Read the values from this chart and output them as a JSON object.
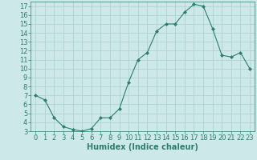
{
  "x": [
    0,
    1,
    2,
    3,
    4,
    5,
    6,
    7,
    8,
    9,
    10,
    11,
    12,
    13,
    14,
    15,
    16,
    17,
    18,
    19,
    20,
    21,
    22,
    23
  ],
  "y": [
    7.0,
    6.5,
    4.5,
    3.5,
    3.2,
    3.0,
    3.3,
    4.5,
    4.5,
    5.5,
    8.5,
    11.0,
    11.8,
    14.2,
    15.0,
    15.0,
    16.3,
    17.2,
    17.0,
    14.5,
    11.5,
    11.3,
    11.8,
    10.0
  ],
  "line_color": "#2e7d6e",
  "marker": "D",
  "marker_size": 2,
  "bg_color": "#cce8e8",
  "grid_color": "#aacece",
  "xlabel": "Humidex (Indice chaleur)",
  "ylim": [
    3,
    17.5
  ],
  "xlim": [
    -0.5,
    23.5
  ],
  "yticks": [
    3,
    4,
    5,
    6,
    7,
    8,
    9,
    10,
    11,
    12,
    13,
    14,
    15,
    16,
    17
  ],
  "xticks": [
    0,
    1,
    2,
    3,
    4,
    5,
    6,
    7,
    8,
    9,
    10,
    11,
    12,
    13,
    14,
    15,
    16,
    17,
    18,
    19,
    20,
    21,
    22,
    23
  ],
  "axis_color": "#2e7d6e",
  "tick_fontsize": 6,
  "xlabel_fontsize": 7
}
